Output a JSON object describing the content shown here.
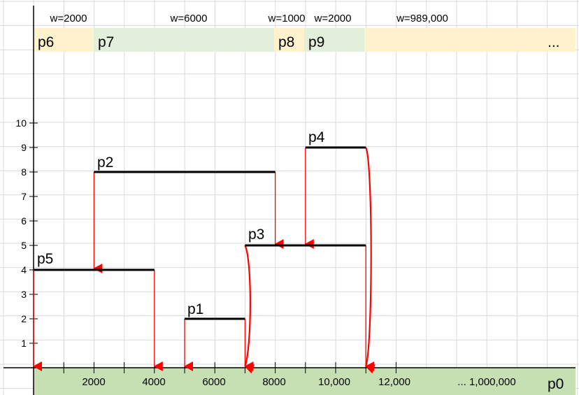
{
  "partitions": [
    {
      "label": "p6",
      "width_label": "w=2000",
      "color": "#FFF2CC"
    },
    {
      "label": "p7",
      "width_label": "w=6000",
      "color": "#E2EFDA"
    },
    {
      "label": "p8",
      "width_label": "w=1000",
      "color": "#FFF2CC"
    },
    {
      "label": "p9",
      "width_label": "w=2000",
      "color": "#E2EFDA"
    },
    {
      "label": "...",
      "width_label": "w=989,000",
      "color": "#FFF2CC"
    }
  ],
  "chart_data": {
    "type": "diagram",
    "x_tick_labels": [
      "2000",
      "4000",
      "6000",
      "8000",
      "10,000",
      "12,000",
      "... 1,000,000"
    ],
    "y_tick_labels": [
      "1",
      "2",
      "3",
      "4",
      "5",
      "6",
      "7",
      "8",
      "9",
      "10"
    ],
    "base_label": "p0",
    "segments": [
      {
        "name": "p1",
        "x_start": 5000,
        "x_end": 7000,
        "y": 2
      },
      {
        "name": "p2",
        "x_start": 2000,
        "x_end": 8000,
        "y": 8
      },
      {
        "name": "p3",
        "x_start": 7000,
        "x_end": 11000,
        "y": 5
      },
      {
        "name": "p4",
        "x_start": 9000,
        "x_end": 11000,
        "y": 9
      },
      {
        "name": "p5",
        "x_start": 0,
        "x_end": 4000,
        "y": 4
      }
    ],
    "drops": [
      {
        "x": 0,
        "from_y": 4,
        "to_y": 0
      },
      {
        "x": 2000,
        "from_y": 8,
        "to_y": 4
      },
      {
        "x": 4000,
        "from_y": 4,
        "to_y": 0
      },
      {
        "x": 5000,
        "from_y": 2,
        "to_y": 0
      },
      {
        "x": 7000,
        "from_y": 2,
        "to_y": 0
      },
      {
        "x": 8000,
        "from_y": 8,
        "to_y": 5
      },
      {
        "x": 9000,
        "from_y": 9,
        "to_y": 5
      },
      {
        "x": 11000,
        "from_y": 5,
        "to_y": 0
      }
    ],
    "curves": [
      {
        "x": 7000,
        "from_y": 5,
        "to_y": 0
      },
      {
        "x": 11000,
        "from_y": 9,
        "to_y": 0
      }
    ],
    "colors": {
      "segment": "#000000",
      "arrow": "#FF0000",
      "base": "#C6E0B4",
      "grid": "#D9D9D9"
    }
  }
}
